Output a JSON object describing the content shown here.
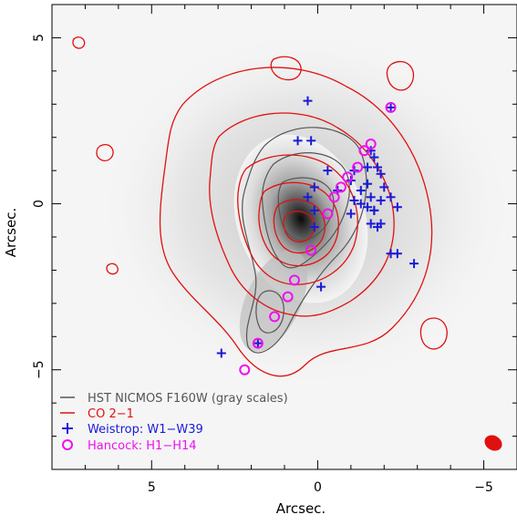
{
  "chart_data": {
    "type": "scatter",
    "title": "",
    "xlabel": "Arcsec.",
    "ylabel": "Arcsec.",
    "x_reversed": true,
    "xlim": [
      8,
      -6
    ],
    "ylim": [
      -8,
      6
    ],
    "xticks": [
      5,
      0,
      -5
    ],
    "yticks": [
      5,
      0,
      -5
    ],
    "legend_position": "lower-left",
    "background": "HST NICMOS F160W gray-scale image",
    "legend": [
      {
        "label": "HST NICMOS F160W (gray scales)",
        "color": "#555555",
        "marker": "line"
      },
      {
        "label": "CO 2−1",
        "color": "#e01010",
        "marker": "line"
      },
      {
        "label": "Weistrop: W1−W39",
        "color": "#1a1ad8",
        "marker": "plus"
      },
      {
        "label": "Hancock: H1−H14",
        "color": "#ee10ee",
        "marker": "circle"
      }
    ],
    "series": [
      {
        "name": "Weistrop: W1−W39",
        "marker": "plus",
        "color": "#1a1ad8",
        "points": [
          [
            0.3,
            3.1
          ],
          [
            -2.2,
            2.9
          ],
          [
            0.6,
            1.9
          ],
          [
            0.2,
            1.9
          ],
          [
            -1.6,
            1.6
          ],
          [
            -1.7,
            1.4
          ],
          [
            -1.8,
            1.1
          ],
          [
            -0.3,
            1.0
          ],
          [
            -1.1,
            1.0
          ],
          [
            -1.5,
            1.1
          ],
          [
            -1.9,
            0.9
          ],
          [
            -1.0,
            0.7
          ],
          [
            -1.5,
            0.6
          ],
          [
            -2.0,
            0.5
          ],
          [
            -1.3,
            0.4
          ],
          [
            0.1,
            0.5
          ],
          [
            -0.6,
            0.4
          ],
          [
            -2.2,
            0.2
          ],
          [
            -1.6,
            0.2
          ],
          [
            -1.1,
            0.1
          ],
          [
            -1.3,
            0.0
          ],
          [
            -1.5,
            -0.1
          ],
          [
            -1.7,
            -0.2
          ],
          [
            -2.4,
            -0.1
          ],
          [
            -1.9,
            0.1
          ],
          [
            0.3,
            0.2
          ],
          [
            0.1,
            -0.2
          ],
          [
            -1.6,
            -0.6
          ],
          [
            -1.8,
            -0.7
          ],
          [
            -2.2,
            -1.5
          ],
          [
            -2.4,
            -1.5
          ],
          [
            -2.9,
            -1.8
          ],
          [
            -1.7,
            -0.2
          ],
          [
            0.1,
            -0.7
          ],
          [
            -1.9,
            -0.6
          ],
          [
            -1.0,
            -0.3
          ],
          [
            -0.1,
            -2.5
          ],
          [
            2.9,
            -4.5
          ],
          [
            1.8,
            -4.2
          ]
        ]
      },
      {
        "name": "Hancock: H1−H14",
        "marker": "circle",
        "color": "#ee10ee",
        "points": [
          [
            -2.2,
            2.9
          ],
          [
            -1.6,
            1.8
          ],
          [
            -1.4,
            1.6
          ],
          [
            -1.2,
            1.1
          ],
          [
            -0.9,
            0.8
          ],
          [
            -0.7,
            0.5
          ],
          [
            -0.5,
            0.2
          ],
          [
            -0.3,
            -0.3
          ],
          [
            0.2,
            -1.4
          ],
          [
            0.7,
            -2.3
          ],
          [
            0.9,
            -2.8
          ],
          [
            1.3,
            -3.4
          ],
          [
            1.8,
            -4.2
          ],
          [
            2.2,
            -5.0
          ]
        ]
      }
    ]
  }
}
